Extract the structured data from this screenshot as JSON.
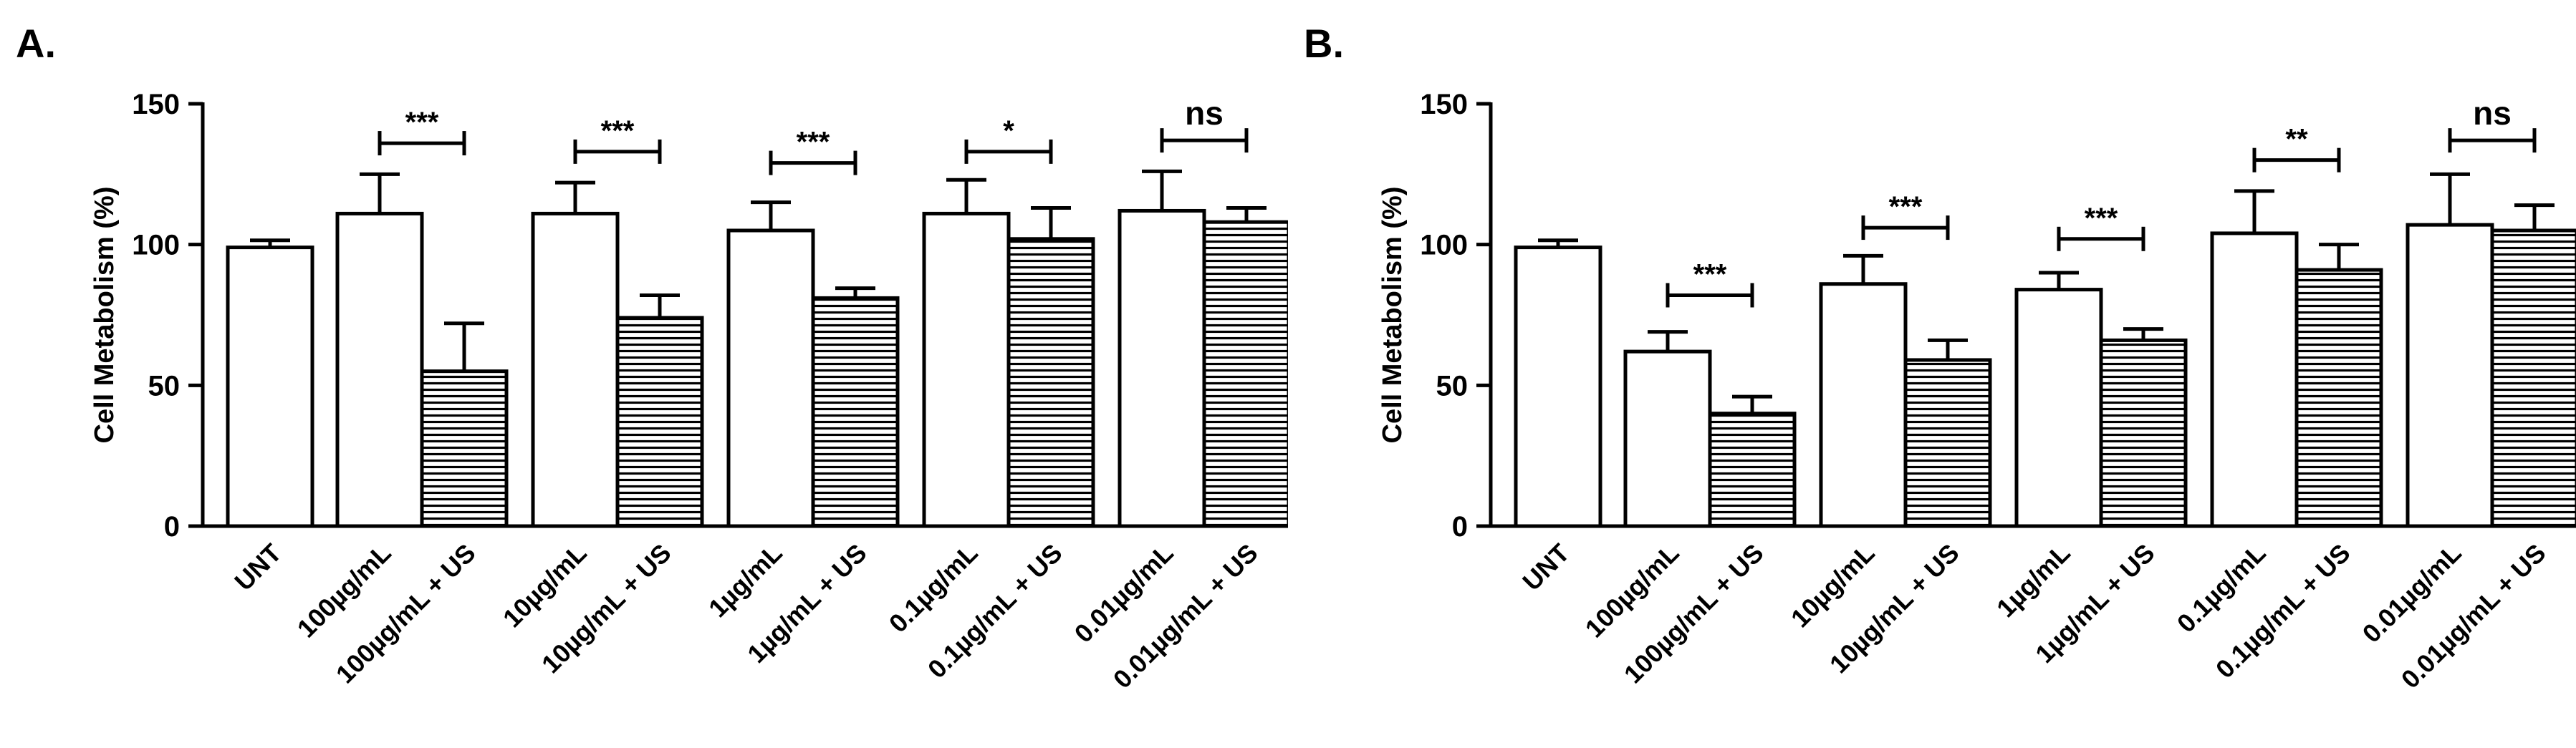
{
  "chart_data": [
    {
      "panel_label": "A.",
      "type": "bar",
      "ylabel": "Cell Metabolism (%)",
      "ylim": [
        0,
        150
      ],
      "yticks": [
        0,
        50,
        100,
        150
      ],
      "categories": [
        "UNT",
        "100µg/mL",
        "100µg/mL + US",
        "10µg/mL",
        "10µg/mL + US",
        "1µg/mL",
        "1µg/mL + US",
        "0.1µg/mL",
        "0.1µg/mL + US",
        "0.01µg/mL",
        "0.01µg/mL + US"
      ],
      "values": [
        99,
        111,
        55,
        111,
        74,
        105,
        81,
        111,
        102,
        112,
        108
      ],
      "errors": [
        2.5,
        14,
        17,
        11,
        8,
        10,
        3.5,
        12,
        11,
        14,
        5
      ],
      "fill": [
        "open",
        "open",
        "hatched",
        "open",
        "hatched",
        "open",
        "hatched",
        "open",
        "hatched",
        "open",
        "hatched"
      ],
      "significance": [
        {
          "pair": [
            1,
            2
          ],
          "label": "***",
          "y": 136
        },
        {
          "pair": [
            3,
            4
          ],
          "label": "***",
          "y": 133
        },
        {
          "pair": [
            5,
            6
          ],
          "label": "***",
          "y": 129
        },
        {
          "pair": [
            7,
            8
          ],
          "label": "*",
          "y": 133
        },
        {
          "pair": [
            9,
            10
          ],
          "label": "ns",
          "y": 137
        }
      ]
    },
    {
      "panel_label": "B.",
      "type": "bar",
      "ylabel": "Cell Metabolism (%)",
      "ylim": [
        0,
        150
      ],
      "yticks": [
        0,
        50,
        100,
        150
      ],
      "categories": [
        "UNT",
        "100µg/mL",
        "100µg/mL + US",
        "10µg/mL",
        "10µg/mL + US",
        "1µg/mL",
        "1µg/mL + US",
        "0.1µg/mL",
        "0.1µg/mL + US",
        "0.01µg/mL",
        "0.01µg/mL + US"
      ],
      "values": [
        99,
        62,
        40,
        86,
        59,
        84,
        66,
        104,
        91,
        107,
        105
      ],
      "errors": [
        2.5,
        7,
        6,
        10,
        7,
        6,
        4,
        15,
        9,
        18,
        9
      ],
      "fill": [
        "open",
        "open",
        "hatched",
        "open",
        "hatched",
        "open",
        "hatched",
        "open",
        "hatched",
        "open",
        "hatched"
      ],
      "significance": [
        {
          "pair": [
            1,
            2
          ],
          "label": "***",
          "y": 82
        },
        {
          "pair": [
            3,
            4
          ],
          "label": "***",
          "y": 106
        },
        {
          "pair": [
            5,
            6
          ],
          "label": "***",
          "y": 102
        },
        {
          "pair": [
            7,
            8
          ],
          "label": "**",
          "y": 130
        },
        {
          "pair": [
            9,
            10
          ],
          "label": "ns",
          "y": 137
        }
      ]
    }
  ]
}
